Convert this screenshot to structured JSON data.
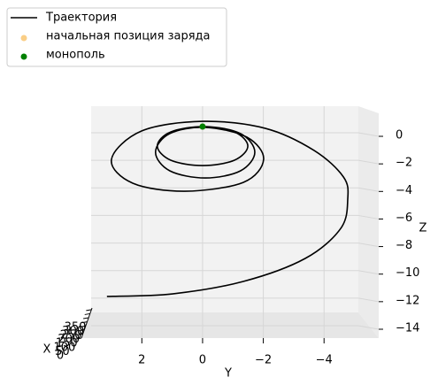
{
  "chart_data": {
    "type": "line3d",
    "xlabel": "X",
    "ylabel": "Y",
    "zlabel": "Z",
    "xlim": [
      0,
      370
    ],
    "xticks": [
      0,
      50,
      100,
      150,
      200,
      250,
      300,
      350
    ],
    "ylim": [
      3.67,
      -5.13
    ],
    "yticks": [
      2,
      0,
      {
        "value": -2,
        "label": "−2"
      },
      {
        "value": -4,
        "label": "−4"
      }
    ],
    "zlim": [
      -14.9,
      1.8
    ],
    "zticks": [
      0,
      {
        "value": -2,
        "label": "−2"
      },
      {
        "value": -4,
        "label": "−4"
      },
      {
        "value": -6,
        "label": "−6"
      },
      {
        "value": -8,
        "label": "−8"
      },
      {
        "value": -10,
        "label": "−10"
      },
      {
        "value": -12,
        "label": "−12"
      },
      {
        "value": -14,
        "label": "−14"
      }
    ],
    "grid": true,
    "legend": "upper left",
    "series": [
      {
        "name": "Траектория",
        "kind": "line",
        "color": "#000000",
        "y": [
          0,
          -1.05,
          -1.49,
          -1.05,
          0,
          1.05,
          1.49,
          1.05,
          -0.09,
          -1.25,
          -1.72,
          -1.25,
          -0.09,
          1.08,
          1.55,
          1.08,
          -0.09,
          -1.46,
          -2.01,
          -1.34,
          0.58,
          2.3,
          3.0,
          2.01,
          0,
          -2.07,
          -3.67,
          -4.64,
          -4.78,
          -4.55,
          -3.38,
          -1.34,
          0.99,
          3.15
        ],
        "z": [
          0.45,
          0.06,
          -0.96,
          -1.99,
          -2.38,
          -1.99,
          -0.96,
          0.06,
          0.45,
          -0.06,
          -1.41,
          -2.76,
          -3.28,
          -2.76,
          -1.41,
          -0.06,
          0.39,
          -0.32,
          -1.93,
          -3.6,
          -4.24,
          -3.66,
          -1.93,
          0.13,
          0.83,
          0.32,
          -1.28,
          -3.21,
          -4.82,
          -6.94,
          -9.12,
          -10.79,
          -11.69,
          -11.88
        ]
      },
      {
        "name": "начальная позиция заряда",
        "kind": "scatter",
        "color": "#f5a623",
        "alpha": 0.55,
        "y": [
          0
        ],
        "z": [
          0.45
        ]
      },
      {
        "name": "монополь",
        "kind": "scatter",
        "color": "#008000",
        "alpha": 1,
        "y": [
          0
        ],
        "z": [
          0.45
        ]
      }
    ]
  }
}
